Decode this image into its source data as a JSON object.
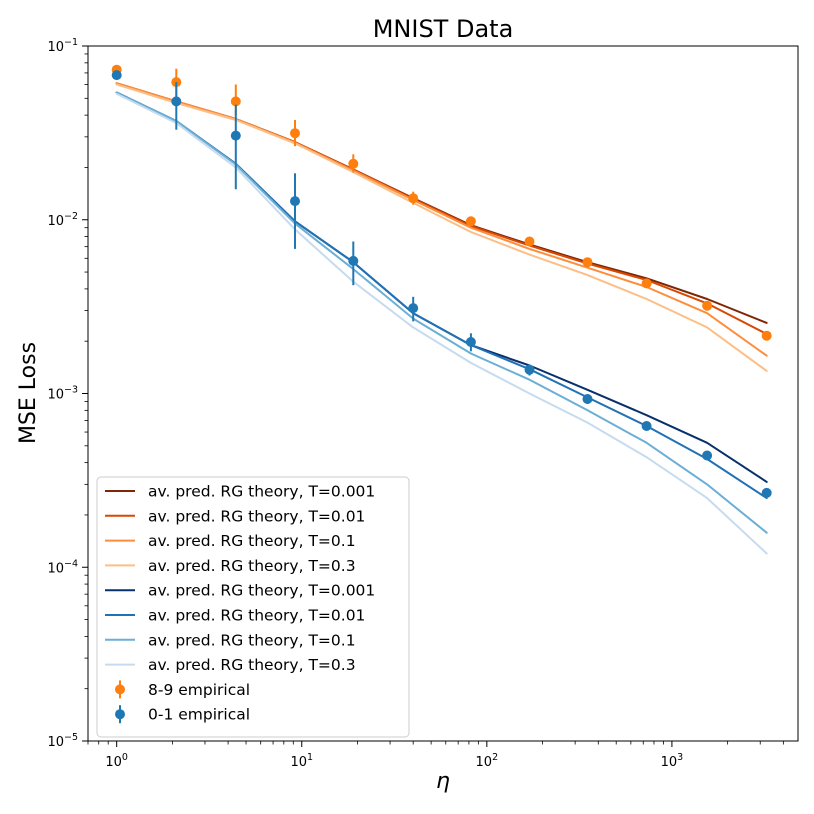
{
  "chart_data": {
    "type": "line",
    "title": "MNIST Data",
    "xlabel": "η",
    "ylabel": "MSE Loss",
    "xscale": "log",
    "yscale": "log",
    "xlim": [
      0.7,
      4800
    ],
    "ylim": [
      1e-05,
      0.1
    ],
    "x_ticks": [
      {
        "value": 1,
        "base": "10",
        "exp": "0"
      },
      {
        "value": 10,
        "base": "10",
        "exp": "1"
      },
      {
        "value": 100,
        "base": "10",
        "exp": "2"
      },
      {
        "value": 1000,
        "base": "10",
        "exp": "3"
      }
    ],
    "y_ticks": [
      {
        "value": 1e-05,
        "base": "10",
        "exp": "−5"
      },
      {
        "value": 0.0001,
        "base": "10",
        "exp": "−4"
      },
      {
        "value": 0.001,
        "base": "10",
        "exp": "−3"
      },
      {
        "value": 0.01,
        "base": "10",
        "exp": "−2"
      },
      {
        "value": 0.1,
        "base": "10",
        "exp": "−1"
      }
    ],
    "grid": false,
    "legend_position": "lower-left",
    "x": [
      1,
      2.1,
      4.4,
      9.2,
      19,
      40,
      82,
      170,
      350,
      730,
      1550,
      3250
    ],
    "series": [
      {
        "name": "av. pred. RG theory, T=0.001",
        "group": "8-9",
        "color": "#7f2704",
        "values": [
          0.061,
          0.048,
          0.038,
          0.028,
          0.0195,
          0.0133,
          0.0093,
          0.0072,
          0.0057,
          0.0046,
          0.0035,
          0.00255
        ]
      },
      {
        "name": "av. pred. RG theory, T=0.01",
        "group": "8-9",
        "color": "#d94801",
        "values": [
          0.061,
          0.048,
          0.038,
          0.028,
          0.0194,
          0.0132,
          0.0092,
          0.0071,
          0.0056,
          0.0045,
          0.0033,
          0.0022
        ]
      },
      {
        "name": "av. pred. RG theory, T=0.1",
        "group": "8-9",
        "color": "#fd8d3c",
        "values": [
          0.061,
          0.048,
          0.038,
          0.0278,
          0.0192,
          0.013,
          0.009,
          0.0068,
          0.0053,
          0.0041,
          0.0029,
          0.00165
        ]
      },
      {
        "name": "av. pred. RG theory, T=0.3",
        "group": "8-9",
        "color": "#fdbe85",
        "values": [
          0.06,
          0.047,
          0.0375,
          0.0275,
          0.0188,
          0.0125,
          0.0085,
          0.0063,
          0.0048,
          0.0035,
          0.0024,
          0.00135
        ]
      },
      {
        "name": "av. pred. RG theory, T=0.001",
        "group": "0-1",
        "color": "#08306b",
        "values": [
          0.054,
          0.037,
          0.021,
          0.0098,
          0.0057,
          0.0029,
          0.0019,
          0.00145,
          0.00105,
          0.00075,
          0.00052,
          0.00031
        ]
      },
      {
        "name": "av. pred. RG theory, T=0.01",
        "group": "0-1",
        "color": "#2171b5",
        "values": [
          0.054,
          0.037,
          0.021,
          0.0098,
          0.0057,
          0.0029,
          0.0019,
          0.00138,
          0.00095,
          0.00065,
          0.00042,
          0.00025
        ]
      },
      {
        "name": "av. pred. RG theory, T=0.1",
        "group": "0-1",
        "color": "#6baed6",
        "values": [
          0.054,
          0.037,
          0.0208,
          0.0095,
          0.0052,
          0.0027,
          0.0017,
          0.0012,
          0.0008,
          0.00052,
          0.0003,
          0.000158
        ]
      },
      {
        "name": "av. pred. RG theory, T=0.3",
        "group": "0-1",
        "color": "#c6dbef",
        "values": [
          0.053,
          0.036,
          0.02,
          0.0088,
          0.0044,
          0.0024,
          0.0015,
          0.001,
          0.00068,
          0.00043,
          0.00025,
          0.00012
        ]
      }
    ],
    "empirical": [
      {
        "name": "8-9 empirical",
        "color": "#ff7f0e",
        "x": [
          1,
          2.1,
          4.4,
          9.2,
          19,
          40,
          82,
          170,
          350,
          730,
          1550,
          3250
        ],
        "values": [
          0.073,
          0.062,
          0.048,
          0.0315,
          0.021,
          0.0133,
          0.0098,
          0.0075,
          0.0057,
          0.0043,
          0.0032,
          0.00215
        ],
        "err_low": [
          0.07,
          0.052,
          0.04,
          0.0265,
          0.0187,
          0.0122,
          0.0094,
          0.0073,
          0.0056,
          0.0042,
          0.0031,
          0.0021
        ],
        "err_high": [
          0.076,
          0.074,
          0.06,
          0.0375,
          0.0238,
          0.0145,
          0.0103,
          0.0078,
          0.0059,
          0.0045,
          0.0033,
          0.0022
        ]
      },
      {
        "name": "0-1 empirical",
        "color": "#1f77b4",
        "x": [
          1,
          2.1,
          4.4,
          9.2,
          19,
          40,
          82,
          170,
          350,
          730,
          1550,
          3250
        ],
        "values": [
          0.068,
          0.048,
          0.0305,
          0.0128,
          0.0058,
          0.0031,
          0.00198,
          0.00137,
          0.00093,
          0.00065,
          0.00044,
          0.000268
        ],
        "err_low": [
          0.066,
          0.033,
          0.015,
          0.0068,
          0.0042,
          0.0026,
          0.00175,
          0.00127,
          0.00087,
          0.00062,
          0.00042,
          0.000255
        ],
        "err_high": [
          0.071,
          0.062,
          0.046,
          0.0185,
          0.0075,
          0.0036,
          0.00222,
          0.00147,
          0.00099,
          0.00068,
          0.00046,
          0.000282
        ]
      }
    ]
  }
}
